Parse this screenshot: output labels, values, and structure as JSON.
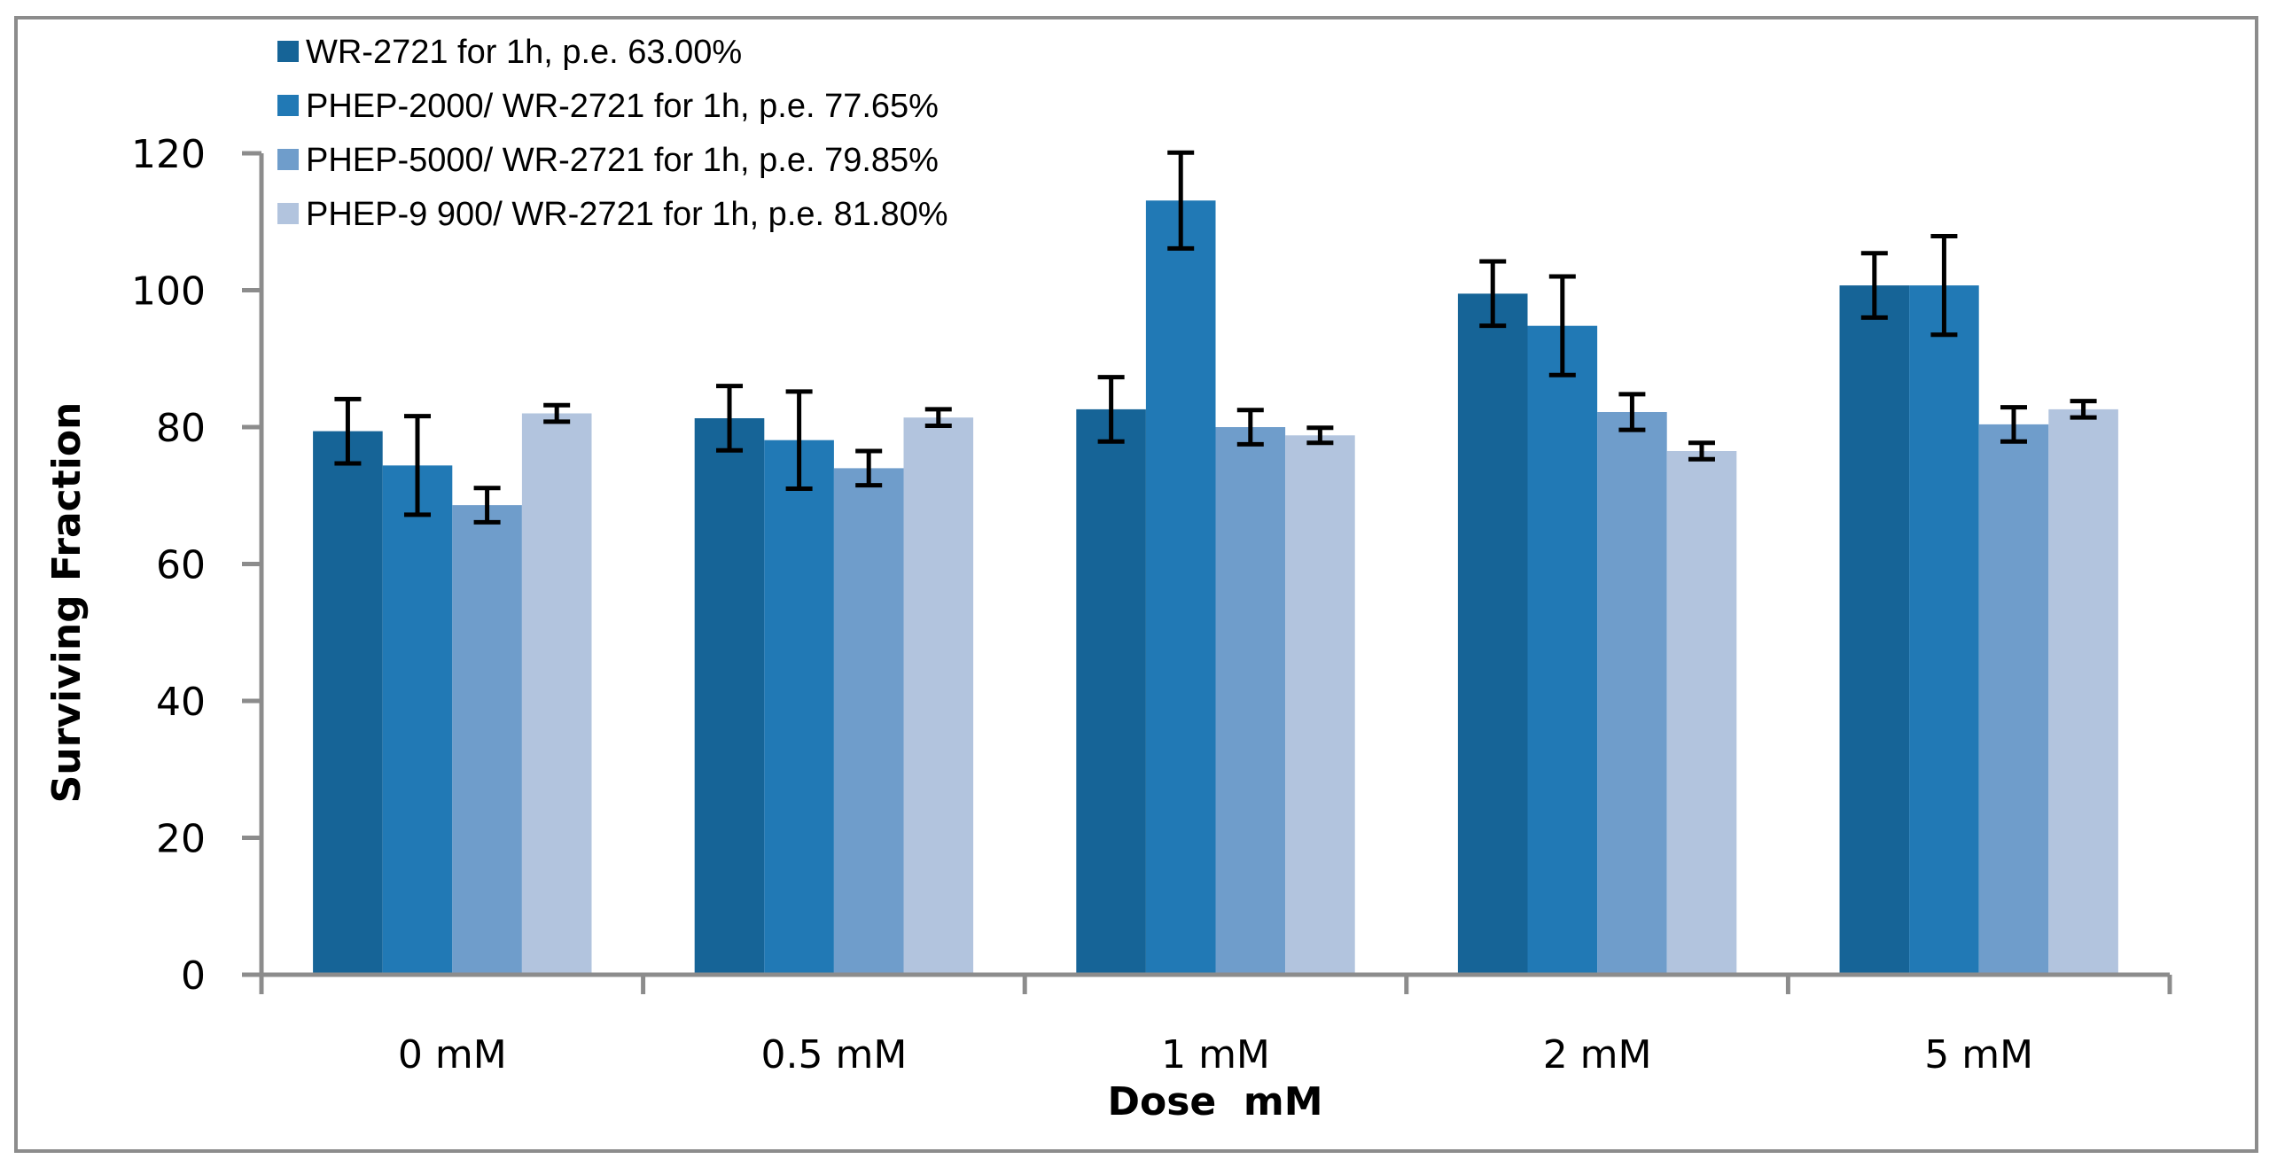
{
  "chart_data": {
    "type": "bar",
    "title": "",
    "xlabel": "Dose  mM",
    "ylabel": "Surviving Fraction",
    "ylim": [
      0,
      120
    ],
    "yticks": [
      0,
      20,
      40,
      60,
      80,
      100,
      120
    ],
    "ytick_labels": [
      "0",
      "20",
      "40",
      "60",
      "80",
      "100",
      "120"
    ],
    "grid": false,
    "legend_position": "top-left",
    "categories": [
      "0 mM",
      "0.5 mM",
      "1 mM",
      "2 mM",
      "5 mM"
    ],
    "series": [
      {
        "name": "WR-2721 for 1h, p.e. 63.00%",
        "color": "#166497",
        "values": [
          79.4,
          81.3,
          82.6,
          99.5,
          100.7
        ],
        "errors": [
          4.7,
          4.7,
          4.7,
          4.7,
          4.7
        ]
      },
      {
        "name": "PHEP-2000/ WR-2721 for 1h, p.e. 77.65%",
        "color": "#2179b5",
        "values": [
          74.4,
          78.1,
          113.1,
          94.8,
          100.7
        ],
        "errors": [
          7.2,
          7.1,
          7.0,
          7.2,
          7.2
        ]
      },
      {
        "name": "PHEP-5000/ WR-2721 for 1h, p.e. 79.85%",
        "color": "#6f9dcb",
        "values": [
          68.6,
          74.0,
          80.0,
          82.2,
          80.4
        ],
        "errors": [
          2.5,
          2.5,
          2.5,
          2.6,
          2.5
        ]
      },
      {
        "name": "PHEP-9 900/ WR-2721 for 1h, p.e. 81.80%",
        "color": "#b2c4de",
        "values": [
          82.0,
          81.4,
          78.8,
          76.5,
          82.6
        ],
        "errors": [
          1.2,
          1.2,
          1.1,
          1.2,
          1.2
        ]
      }
    ]
  },
  "colors": {
    "axis": "#8c8c8c",
    "frame": "#8c8c8c",
    "error_bar": "#000000"
  }
}
